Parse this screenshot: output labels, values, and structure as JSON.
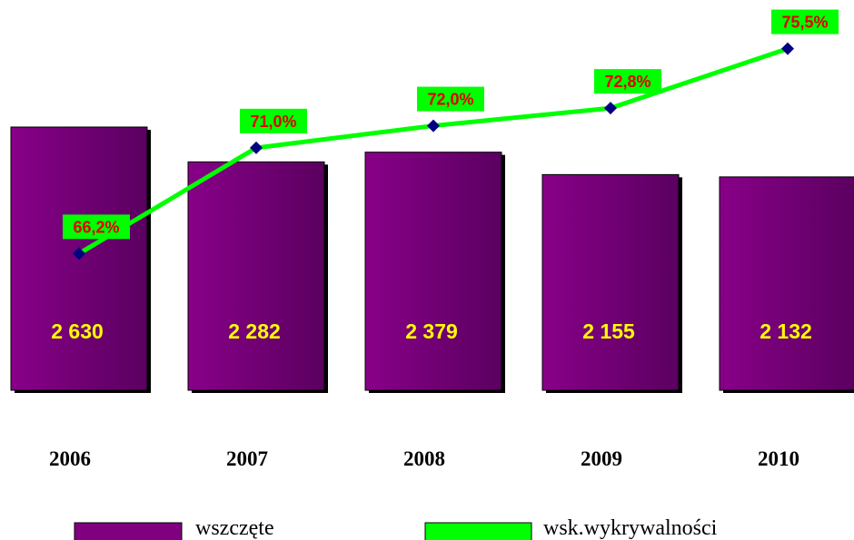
{
  "chart_data": {
    "type": "bar-line",
    "categories": [
      "2006",
      "2007",
      "2008",
      "2009",
      "2010"
    ],
    "series": [
      {
        "name": "wszczęte",
        "color": "#800080",
        "values": [
          2630,
          2282,
          2379,
          2155,
          2132
        ],
        "value_labels": [
          "2 630",
          "2 282",
          "2 379",
          "2 155",
          "2 132"
        ]
      },
      {
        "name": "wsk.wykrywalności",
        "color": "#00ff00",
        "axis": "y2",
        "values": [
          66.2,
          71.0,
          72.0,
          72.8,
          75.5
        ],
        "value_labels": [
          "66,2%",
          "71,0%",
          "72,0%",
          "72,8%",
          "75,5%"
        ]
      }
    ],
    "ylim": [
      0,
      3700
    ],
    "y2lim": [
      60,
      76.8
    ]
  }
}
